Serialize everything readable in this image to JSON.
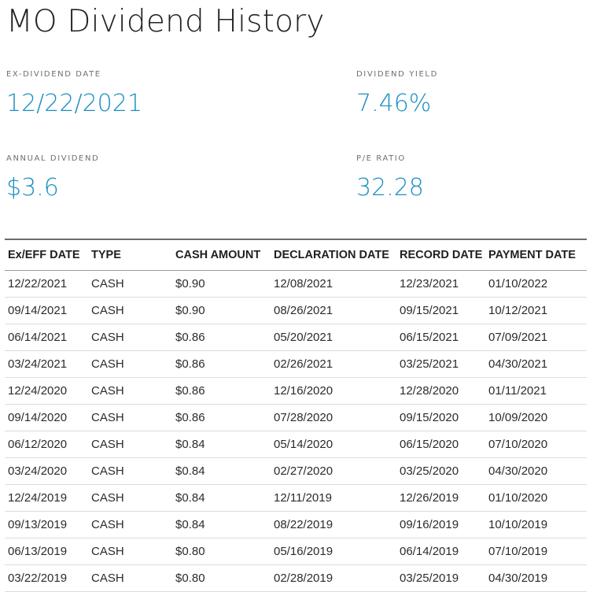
{
  "page": {
    "title": "MO Dividend History"
  },
  "stats": {
    "ex_dividend_date": {
      "label": "EX-DIVIDEND DATE",
      "value": "12/22/2021"
    },
    "dividend_yield": {
      "label": "DIVIDEND YIELD",
      "value": "7.46%"
    },
    "annual_dividend": {
      "label": "ANNUAL DIVIDEND",
      "value": "$3.6"
    },
    "pe_ratio": {
      "label": "P/E RATIO",
      "value": "32.28"
    }
  },
  "colors": {
    "accent": "#1a8fc2",
    "text": "#222222",
    "label": "#6f6f6f"
  },
  "table": {
    "columns": [
      "Ex/EFF DATE",
      "TYPE",
      "CASH AMOUNT",
      "DECLARATION DATE",
      "RECORD DATE",
      "PAYMENT DATE"
    ],
    "rows": [
      [
        "12/22/2021",
        "CASH",
        "$0.90",
        "12/08/2021",
        "12/23/2021",
        "01/10/2022"
      ],
      [
        "09/14/2021",
        "CASH",
        "$0.90",
        "08/26/2021",
        "09/15/2021",
        "10/12/2021"
      ],
      [
        "06/14/2021",
        "CASH",
        "$0.86",
        "05/20/2021",
        "06/15/2021",
        "07/09/2021"
      ],
      [
        "03/24/2021",
        "CASH",
        "$0.86",
        "02/26/2021",
        "03/25/2021",
        "04/30/2021"
      ],
      [
        "12/24/2020",
        "CASH",
        "$0.86",
        "12/16/2020",
        "12/28/2020",
        "01/11/2021"
      ],
      [
        "09/14/2020",
        "CASH",
        "$0.86",
        "07/28/2020",
        "09/15/2020",
        "10/09/2020"
      ],
      [
        "06/12/2020",
        "CASH",
        "$0.84",
        "05/14/2020",
        "06/15/2020",
        "07/10/2020"
      ],
      [
        "03/24/2020",
        "CASH",
        "$0.84",
        "02/27/2020",
        "03/25/2020",
        "04/30/2020"
      ],
      [
        "12/24/2019",
        "CASH",
        "$0.84",
        "12/11/2019",
        "12/26/2019",
        "01/10/2020"
      ],
      [
        "09/13/2019",
        "CASH",
        "$0.84",
        "08/22/2019",
        "09/16/2019",
        "10/10/2019"
      ],
      [
        "06/13/2019",
        "CASH",
        "$0.80",
        "05/16/2019",
        "06/14/2019",
        "07/10/2019"
      ],
      [
        "03/22/2019",
        "CASH",
        "$0.80",
        "02/28/2019",
        "03/25/2019",
        "04/30/2019"
      ]
    ]
  }
}
